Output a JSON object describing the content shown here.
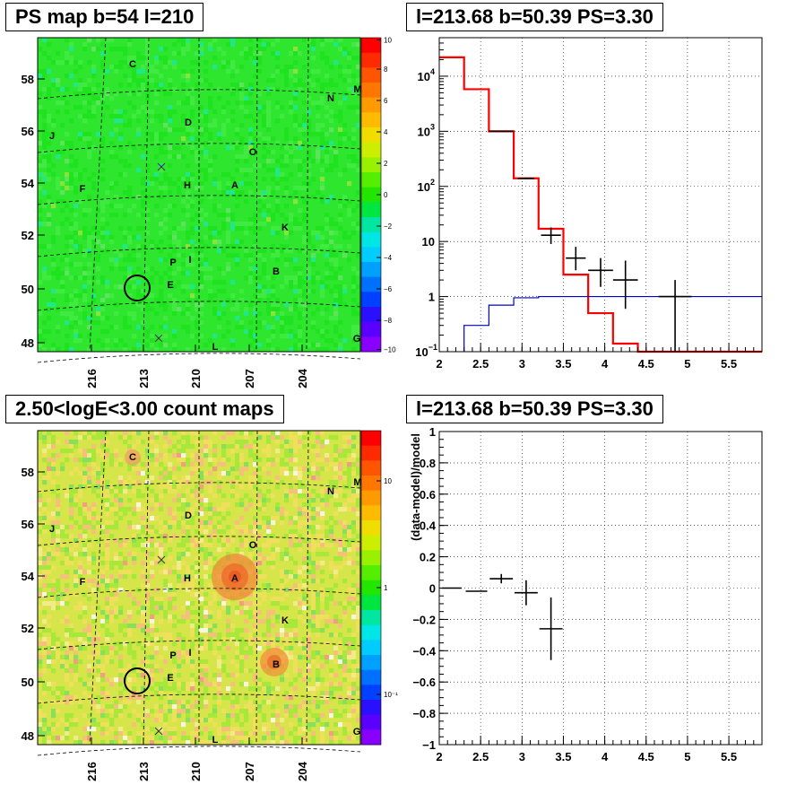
{
  "panels": {
    "map_title": "PS map b=54 l=210",
    "spec_title": "l=213.68 b=50.39 PS=3.30",
    "count_title": "2.50<logE<3.00 count maps",
    "resid_title": "l=213.68 b=50.39 PS=3.30"
  },
  "chart_data": [
    {
      "type": "heatmap",
      "title": "PS map b=54 l=210",
      "x_ticks": [
        "216",
        "213",
        "210",
        "207",
        "204"
      ],
      "y_ticks": [
        "58",
        "56",
        "54",
        "52",
        "50",
        "48"
      ],
      "colorbar_ticks": [
        "10",
        "8",
        "6",
        "4",
        "2",
        "0",
        "−2",
        "−4",
        "−6",
        "−8",
        "−10"
      ],
      "colorbar_range": [
        -10,
        10
      ],
      "sources": [
        "C",
        "M",
        "N",
        "D",
        "J",
        "O",
        "H",
        "A",
        "F",
        "K",
        "P",
        "I",
        "B",
        "E",
        "L",
        "G"
      ],
      "dominant_color": "#2ee62e"
    },
    {
      "type": "line",
      "title": "l=213.68 b=50.39 PS=3.30",
      "log_y": true,
      "xlim": [
        2,
        5.9
      ],
      "ylim": [
        0.1,
        50000
      ],
      "x_ticks": [
        "2",
        "2.5",
        "3",
        "3.5",
        "4",
        "4.5",
        "5",
        "5.5"
      ],
      "grid": true,
      "series": [
        {
          "color": "#ff0000",
          "edges": [
            2.0,
            2.3,
            2.6,
            2.9,
            3.2,
            3.5,
            3.8,
            4.1,
            4.4,
            5.9
          ],
          "values": [
            22000,
            5800,
            1000,
            140,
            17,
            2.5,
            0.5,
            0.14,
            0.1
          ]
        },
        {
          "color": "#0000cc",
          "edges": [
            2.3,
            2.6,
            2.9,
            3.2,
            5.9
          ],
          "values": [
            0.3,
            0.7,
            0.95,
            1.0
          ]
        },
        {
          "color": "#000000",
          "points": [
            {
              "x": 2.75,
              "y": 1000,
              "xerr": 0.15,
              "ylo": 1000,
              "yhi": 1000
            },
            {
              "x": 3.05,
              "y": 140,
              "xerr": 0.1,
              "ylo": 135,
              "yhi": 145
            },
            {
              "x": 3.35,
              "y": 13,
              "xerr": 0.12,
              "ylo": 9,
              "yhi": 18
            },
            {
              "x": 3.65,
              "y": 5,
              "xerr": 0.12,
              "ylo": 3,
              "yhi": 8
            },
            {
              "x": 3.95,
              "y": 3,
              "xerr": 0.15,
              "ylo": 1.5,
              "yhi": 5
            },
            {
              "x": 4.25,
              "y": 2,
              "xerr": 0.15,
              "ylo": 0.6,
              "yhi": 4.5
            },
            {
              "x": 4.85,
              "y": 1,
              "xerr": 0.2,
              "ylo": 0.1,
              "yhi": 2
            }
          ]
        }
      ]
    },
    {
      "type": "heatmap",
      "title": "2.50<logE<3.00 count maps",
      "x_ticks": [
        "216",
        "213",
        "210",
        "207",
        "204"
      ],
      "y_ticks": [
        "58",
        "56",
        "54",
        "52",
        "50",
        "48"
      ],
      "colorbar_ticks": [
        "10",
        "1",
        "10⁻¹"
      ],
      "log_color": true,
      "sources": [
        "C",
        "M",
        "N",
        "D",
        "J",
        "O",
        "H",
        "A",
        "F",
        "K",
        "P",
        "I",
        "B",
        "E",
        "L",
        "G"
      ],
      "dominant_color": "#d6e64a"
    },
    {
      "type": "scatter",
      "title": "l=213.68 b=50.39 PS=3.30",
      "ylabel": "(data-model)/model",
      "xlim": [
        2,
        5.9
      ],
      "ylim": [
        -1,
        1
      ],
      "x_ticks": [
        "2",
        "2.5",
        "3",
        "3.5",
        "4",
        "4.5",
        "5",
        "5.5"
      ],
      "y_ticks": [
        "1",
        "0.8",
        "0.6",
        "0.4",
        "0.2",
        "0",
        "−0.2",
        "−0.4",
        "−0.6",
        "−0.8",
        "−1"
      ],
      "grid": true,
      "points": [
        {
          "x": 2.15,
          "y": 0.0,
          "xerr": 0.12,
          "yerr": 0.0
        },
        {
          "x": 2.45,
          "y": -0.02,
          "xerr": 0.13,
          "yerr": 0.0
        },
        {
          "x": 2.75,
          "y": 0.06,
          "xerr": 0.14,
          "yerr": 0.03
        },
        {
          "x": 3.05,
          "y": -0.03,
          "xerr": 0.14,
          "yerr": 0.08
        },
        {
          "x": 3.35,
          "y": -0.26,
          "xerr": 0.14,
          "yerr": 0.2
        }
      ]
    }
  ]
}
